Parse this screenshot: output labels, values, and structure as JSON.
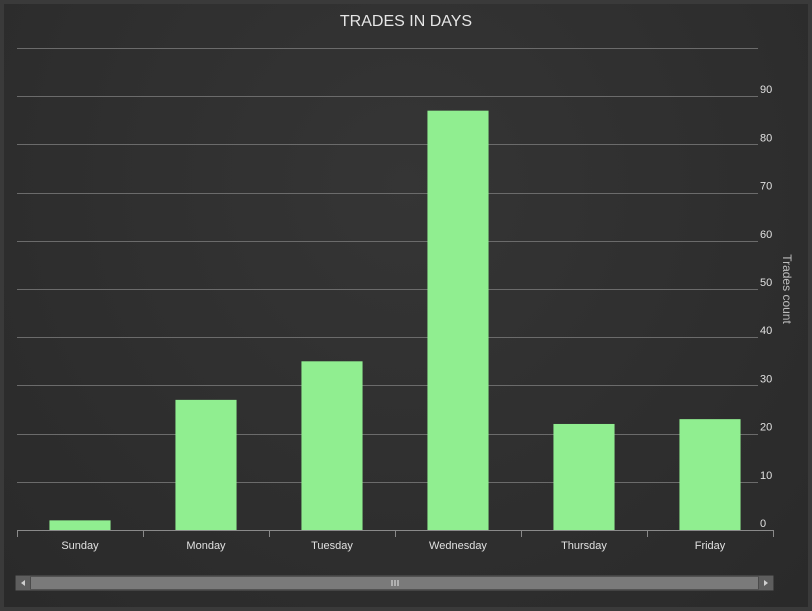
{
  "chart_data": {
    "type": "bar",
    "title": "TRADES IN DAYS",
    "xlabel": "",
    "ylabel": "Trades count",
    "categories": [
      "Sunday",
      "Monday",
      "Tuesday",
      "Wednesday",
      "Thursday",
      "Friday"
    ],
    "series": [
      {
        "values": [
          2,
          27,
          35,
          87,
          22,
          23
        ]
      }
    ],
    "ylim": [
      0,
      100
    ],
    "yticks": [
      0,
      10,
      20,
      30,
      40,
      50,
      60,
      70,
      80,
      90
    ],
    "y_axis_side": "right",
    "grid": true,
    "bar_color": "#90ee90",
    "background_color": "#2e2e2e"
  },
  "scrollbar": {
    "grip_icon": "grip-lines-icon",
    "left_icon": "arrow-left-icon",
    "right_icon": "arrow-right-icon"
  }
}
